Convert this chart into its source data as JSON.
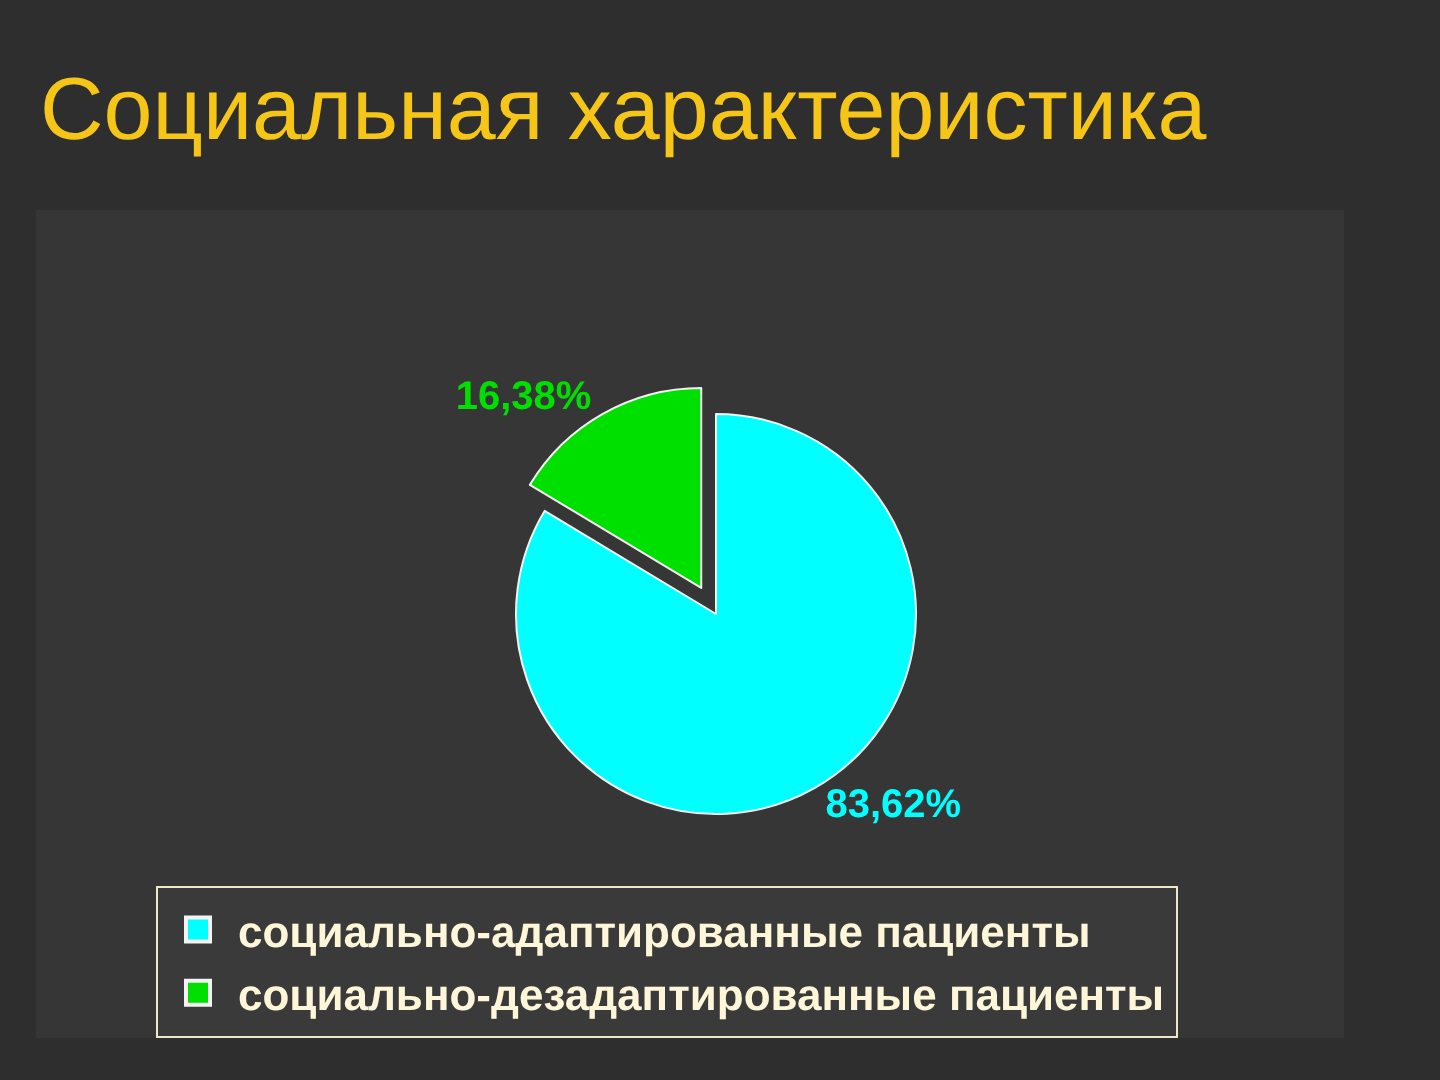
{
  "chart_data": {
    "type": "pie",
    "title": "Социальная характеристика",
    "categories": [
      "социально-адаптированные пациенты",
      "социально-дезадаптированные пациенты"
    ],
    "values": [
      83.62,
      16.38
    ],
    "colors": [
      "#00ffff",
      "#00e000"
    ],
    "value_labels": [
      "83,62%",
      "16,38%"
    ],
    "legend": "bottom"
  }
}
